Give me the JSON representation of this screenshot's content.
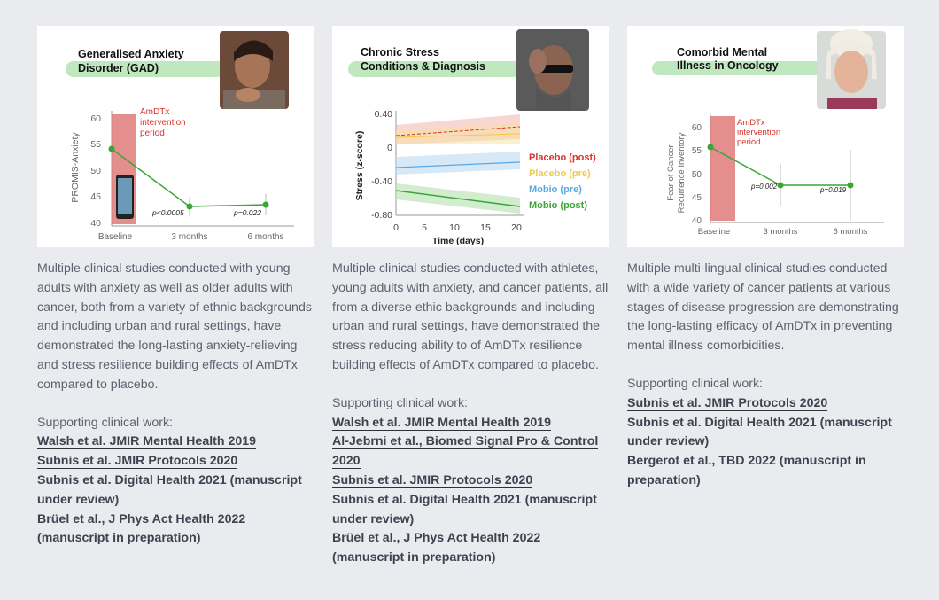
{
  "columns": [
    {
      "figure": {
        "title_line1": "Generalised Anxiety",
        "title_line2": "Disorder (GAD)",
        "ylabel": "PROMIS-Anxiety",
        "yticks": [
          "60",
          "55",
          "50",
          "45",
          "40"
        ],
        "xticks": [
          "Baseline",
          "3 months",
          "6 months"
        ],
        "intervention_label_1": "AmDTx",
        "intervention_label_2": "intervention",
        "intervention_label_3": "period",
        "pvalue_1": "p<0.0005",
        "pvalue_2": "p=0.022"
      },
      "description": "Multiple clinical studies conducted with young adults with anxiety as well as older adults with cancer, both from a variety of ethnic backgrounds and including urban and rural settings, have demonstrated the long-lasting anxiety-relieving and stress resilience building effects of AmDTx compared to placebo.",
      "support_head": "Supporting clinical work:",
      "refs": [
        {
          "text": "Walsh et al. JMIR Mental Health 2019",
          "link": true
        },
        {
          "text": "Subnis et al. JMIR Protocols 2020",
          "link": true
        },
        {
          "text": "Subnis et al. Digital Health 2021 (manuscript under review)",
          "link": false
        },
        {
          "text": "Brüel et al., J Phys Act Health 2022 (manuscript in preparation)",
          "link": false
        }
      ]
    },
    {
      "figure": {
        "title_line1": "Chronic Stress",
        "title_line2": "Conditions & Diagnosis",
        "ylabel": "Stress (z-score)",
        "yticks": [
          "0.40",
          "0",
          "-0.40",
          "-0.80"
        ],
        "xticks": [
          "0",
          "5",
          "10",
          "15",
          "20"
        ],
        "xlabel": "Time (days)",
        "legend": [
          {
            "text": "Placebo (post)",
            "color": "#d9342b"
          },
          {
            "text": "Placebo (pre)",
            "color": "#f2c94c"
          },
          {
            "text": "Mobio (pre)",
            "color": "#5aa9e6"
          },
          {
            "text": "Mobio (post)",
            "color": "#3aa635"
          }
        ]
      },
      "description": "Multiple clinical studies conducted with athletes, young adults with anxiety, and cancer patients, all from a diverse ethic backgrounds and including urban and rural settings, have demonstrated the stress reducing ability to of AmDTx resilience building effects of AmDTx compared to placebo.",
      "support_head": "Supporting clinical work:",
      "refs": [
        {
          "text": "Walsh et al. JMIR Mental Health 2019",
          "link": true
        },
        {
          "text": "Al-Jebrni et al., Biomed Signal Pro & Control 2020",
          "link": true
        },
        {
          "text": "Subnis et al. JMIR Protocols 2020",
          "link": true
        },
        {
          "text": "Subnis et al. Digital Health 2021 (manuscript under review)",
          "link": false
        },
        {
          "text": "Brüel et al., J Phys Act Health 2022 (manuscript in preparation)",
          "link": false
        }
      ]
    },
    {
      "figure": {
        "title_line1": "Comorbid Mental",
        "title_line2": "Illness in Oncology",
        "ylabel_1": "Fear of Cancer",
        "ylabel_2": "Recurrence Inventory",
        "yticks": [
          "60",
          "55",
          "50",
          "45",
          "40"
        ],
        "xticks": [
          "Baseline",
          "3 months",
          "6 months"
        ],
        "intervention_label_1": "AmDTx",
        "intervention_label_2": "intervention",
        "intervention_label_3": "period",
        "pvalue_1": "p=0.002",
        "pvalue_2": "p=0.019"
      },
      "description": "Multiple multi-lingual clinical studies conducted with a wide variety of cancer patients at various stages of disease progression are demonstrating the long-lasting efficacy of AmDTx in preventing mental illness comorbidities.",
      "support_head": "Supporting clinical work:",
      "refs": [
        {
          "text": "Subnis et al. JMIR Protocols 2020",
          "link": true
        },
        {
          "text": "Subnis et al. Digital Health 2021 (manuscript under review)",
          "link": false
        },
        {
          "text": "Bergerot et al., TBD 2022 (manuscript in preparation)",
          "link": false
        }
      ]
    }
  ]
}
